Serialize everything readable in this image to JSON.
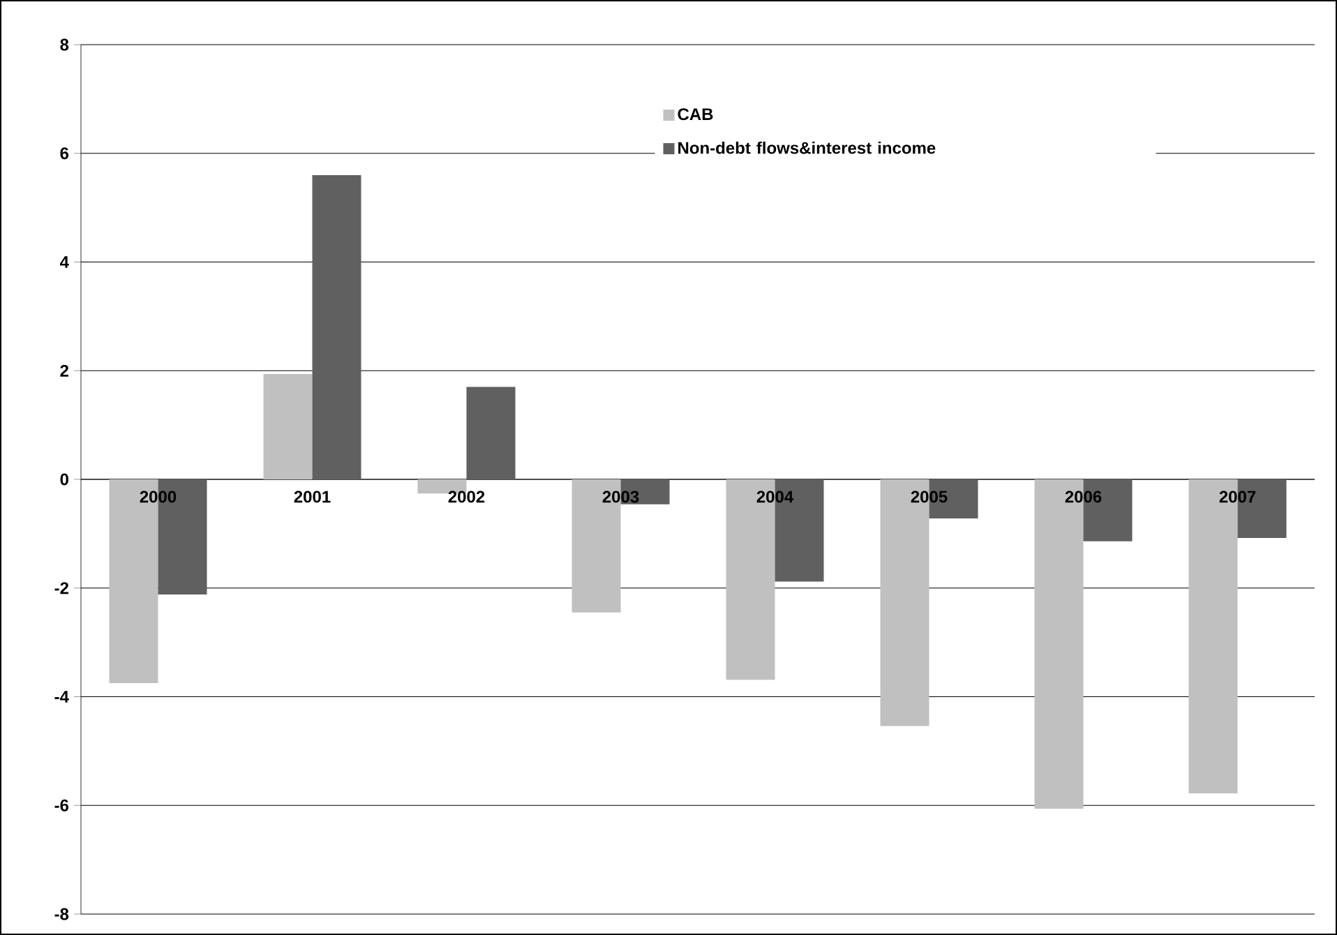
{
  "chart_data": {
    "type": "bar",
    "categories": [
      "2000",
      "2001",
      "2002",
      "2003",
      "2004",
      "2005",
      "2006",
      "2007"
    ],
    "series": [
      {
        "name": "CAB",
        "color": "#c0c0c0",
        "values": [
          -3.75,
          1.94,
          -0.26,
          -2.45,
          -3.69,
          -4.54,
          -6.06,
          -5.78
        ]
      },
      {
        "name": "Non-debt flows&interest income",
        "color": "#606060",
        "values": [
          -2.12,
          5.6,
          1.7,
          -0.46,
          -1.88,
          -0.72,
          -1.14,
          -1.08
        ]
      }
    ],
    "ylim": [
      -8,
      8
    ],
    "yticks": [
      -8,
      -6,
      -4,
      -2,
      0,
      2,
      4,
      6,
      8
    ],
    "grid": "y",
    "legend": "top right"
  }
}
